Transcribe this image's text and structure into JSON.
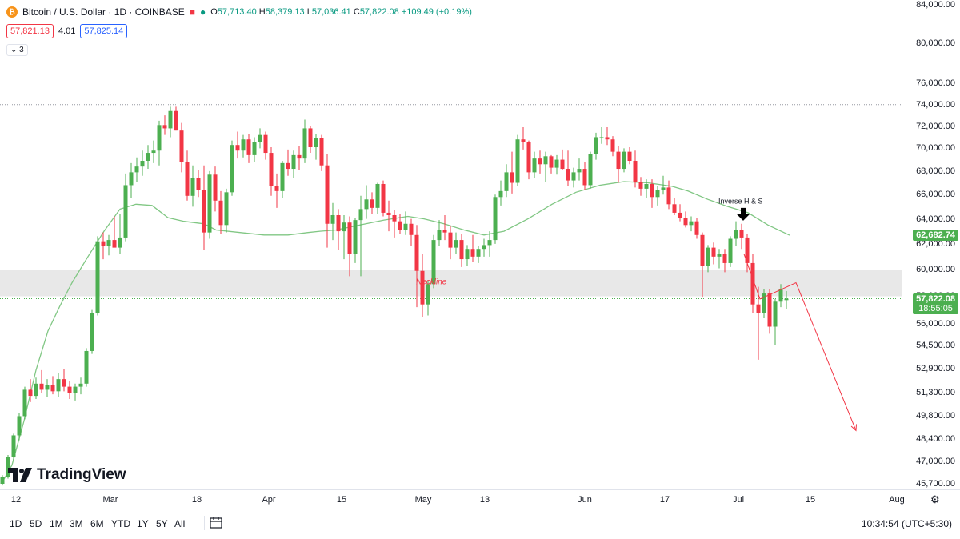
{
  "legend": {
    "symbol_icon": "bitcoin-icon",
    "symbol": "Bitcoin / U.S. Dollar · 1D · COINBASE",
    "ohlc": [
      {
        "k": "O",
        "v": "57,713.40"
      },
      {
        "k": "H",
        "v": "58,379.13"
      },
      {
        "k": "L",
        "v": "57,036.41"
      },
      {
        "k": "C",
        "v": "57,822.08"
      }
    ],
    "change": "+109.49 (+0.19%)",
    "bid": "57,821.13",
    "spread": "4.01",
    "ask": "57,825.14",
    "indicator_count": "3"
  },
  "logo": {
    "text": "TradingView"
  },
  "annotations": {
    "neckline": "Neckline",
    "pattern": "Inverse H & S"
  },
  "price_labels": {
    "ma": "62,682.74",
    "last": "57,822.08",
    "countdown": "18:55:05"
  },
  "price_axis": [
    "84,000.00",
    "80,000.00",
    "76,000.00",
    "74,000.00",
    "72,000.00",
    "70,000.00",
    "68,000.00",
    "66,000.00",
    "64,000.00",
    "62,000.00",
    "60,000.00",
    "58,000.00",
    "56,000.00",
    "54,500.00",
    "52,900.00",
    "51,300.00",
    "49,800.00",
    "48,400.00",
    "47,000.00",
    "45,700.00"
  ],
  "time_axis": [
    "12",
    "Mar",
    "18",
    "Apr",
    "15",
    "May",
    "13",
    "Jun",
    "17",
    "Jul",
    "15",
    "Aug"
  ],
  "ranges": [
    "1D",
    "5D",
    "1M",
    "3M",
    "6M",
    "YTD",
    "1Y",
    "5Y",
    "All"
  ],
  "clock": "10:34:54",
  "timezone": "(UTC+5:30)",
  "colors": {
    "up": "#4caf50",
    "down": "#f23645",
    "ma": "#81c784",
    "zone": "#e0e0e0"
  },
  "chart_data": {
    "type": "candlestick",
    "scale": "log",
    "ylim": [
      45700,
      84000
    ],
    "reference_level": 74000,
    "neckline_zone": [
      58000,
      60000
    ],
    "moving_average": [
      [
        3,
        45800
      ],
      [
        15,
        46800
      ],
      [
        30,
        49500
      ],
      [
        45,
        52800
      ],
      [
        60,
        55500
      ],
      [
        75,
        57300
      ],
      [
        90,
        59000
      ],
      [
        110,
        61000
      ],
      [
        130,
        63000
      ],
      [
        150,
        64800
      ],
      [
        170,
        65200
      ],
      [
        190,
        65100
      ],
      [
        210,
        64100
      ],
      [
        230,
        63800
      ],
      [
        255,
        63600
      ],
      [
        270,
        63100
      ],
      [
        300,
        62900
      ],
      [
        330,
        62700
      ],
      [
        360,
        62700
      ],
      [
        385,
        62900
      ],
      [
        400,
        63000
      ],
      [
        420,
        63100
      ],
      [
        450,
        63500
      ],
      [
        480,
        63900
      ],
      [
        510,
        64200
      ],
      [
        530,
        64000
      ],
      [
        555,
        63600
      ],
      [
        580,
        63100
      ],
      [
        605,
        62700
      ],
      [
        630,
        63000
      ],
      [
        660,
        64000
      ],
      [
        690,
        65200
      ],
      [
        720,
        66200
      ],
      [
        750,
        66800
      ],
      [
        780,
        67100
      ],
      [
        810,
        67000
      ],
      [
        840,
        66700
      ],
      [
        860,
        66300
      ],
      [
        885,
        65600
      ],
      [
        910,
        65000
      ],
      [
        935,
        64500
      ],
      [
        960,
        63500
      ],
      [
        987,
        62683
      ]
    ],
    "projection": [
      [
        930,
        61200
      ],
      [
        950,
        57800
      ],
      [
        995,
        59000
      ],
      [
        1070,
        48900
      ]
    ],
    "candles": [
      [
        3,
        45700,
        46200,
        45600,
        46100
      ],
      [
        10,
        46100,
        47400,
        46000,
        47300
      ],
      [
        17,
        47300,
        48700,
        47100,
        48600
      ],
      [
        24,
        48600,
        50000,
        48300,
        49800
      ],
      [
        31,
        49800,
        51700,
        49600,
        51500
      ],
      [
        38,
        51500,
        52200,
        50700,
        51100
      ],
      [
        45,
        51100,
        52300,
        50900,
        51900
      ],
      [
        52,
        51900,
        52800,
        51300,
        51500
      ],
      [
        59,
        51500,
        52200,
        51000,
        51800
      ],
      [
        66,
        51800,
        52400,
        51200,
        51400
      ],
      [
        73,
        51400,
        52600,
        51000,
        52200
      ],
      [
        80,
        52200,
        52900,
        51400,
        51700
      ],
      [
        87,
        51700,
        52100,
        50900,
        51300
      ],
      [
        94,
        51300,
        51900,
        50800,
        51700
      ],
      [
        101,
        51700,
        52300,
        51200,
        51900
      ],
      [
        108,
        51900,
        54300,
        51700,
        54100
      ],
      [
        115,
        54100,
        57000,
        53900,
        56800
      ],
      [
        122,
        56800,
        62600,
        56600,
        62200
      ],
      [
        129,
        62200,
        62900,
        60800,
        61800
      ],
      [
        136,
        61800,
        62700,
        61100,
        62300
      ],
      [
        143,
        62300,
        64200,
        61800,
        61700
      ],
      [
        150,
        61700,
        64400,
        61200,
        62500
      ],
      [
        157,
        62500,
        67800,
        62200,
        66800
      ],
      [
        164,
        66800,
        68700,
        65700,
        67900
      ],
      [
        171,
        67900,
        69200,
        67100,
        68400
      ],
      [
        178,
        68400,
        69800,
        67600,
        68900
      ],
      [
        185,
        68900,
        70300,
        68200,
        69600
      ],
      [
        192,
        69600,
        70700,
        68700,
        69800
      ],
      [
        199,
        69800,
        72500,
        68500,
        72100
      ],
      [
        206,
        72100,
        73000,
        71200,
        71800
      ],
      [
        213,
        71800,
        73800,
        71000,
        73400
      ],
      [
        220,
        73400,
        73800,
        71600,
        71600
      ],
      [
        227,
        71600,
        72300,
        67900,
        68800
      ],
      [
        234,
        68800,
        69800,
        65500,
        65900
      ],
      [
        241,
        65900,
        68500,
        65000,
        67400
      ],
      [
        248,
        67400,
        68100,
        65800,
        66400
      ],
      [
        255,
        66400,
        68500,
        61500,
        62900
      ],
      [
        262,
        62900,
        68000,
        62400,
        67700
      ],
      [
        269,
        67700,
        68400,
        64600,
        65500
      ],
      [
        276,
        65500,
        66300,
        62800,
        63500
      ],
      [
        283,
        63500,
        66500,
        62900,
        66200
      ],
      [
        290,
        66200,
        70700,
        65900,
        70300
      ],
      [
        297,
        70300,
        71500,
        69100,
        69800
      ],
      [
        304,
        69800,
        71200,
        69200,
        70800
      ],
      [
        311,
        70800,
        71300,
        68700,
        69400
      ],
      [
        318,
        69400,
        71000,
        68800,
        70600
      ],
      [
        325,
        70600,
        71800,
        70000,
        71200
      ],
      [
        332,
        71200,
        71500,
        69000,
        69600
      ],
      [
        339,
        69600,
        70100,
        65900,
        66700
      ],
      [
        346,
        66700,
        67800,
        64900,
        66300
      ],
      [
        353,
        66300,
        68900,
        65700,
        68700
      ],
      [
        360,
        68700,
        69900,
        67600,
        68200
      ],
      [
        367,
        68200,
        69800,
        67400,
        69400
      ],
      [
        374,
        69400,
        70200,
        68100,
        69100
      ],
      [
        381,
        69100,
        72600,
        68700,
        71800
      ],
      [
        388,
        71800,
        72000,
        69600,
        70100
      ],
      [
        395,
        70100,
        71300,
        69000,
        70900
      ],
      [
        402,
        70900,
        71200,
        68000,
        68500
      ],
      [
        409,
        68500,
        69500,
        61700,
        63600
      ],
      [
        416,
        63600,
        65300,
        62300,
        64300
      ],
      [
        423,
        64300,
        64800,
        61500,
        63000
      ],
      [
        430,
        63000,
        64300,
        60800,
        63700
      ],
      [
        437,
        63700,
        64200,
        59500,
        61200
      ],
      [
        444,
        61200,
        64100,
        60500,
        63900
      ],
      [
        451,
        63900,
        65900,
        59500,
        64800
      ],
      [
        458,
        64800,
        66800,
        64000,
        65600
      ],
      [
        465,
        65600,
        66200,
        64400,
        64900
      ],
      [
        472,
        64900,
        67000,
        64400,
        66900
      ],
      [
        479,
        66900,
        67200,
        64200,
        64500
      ],
      [
        486,
        64500,
        65500,
        63000,
        64300
      ],
      [
        493,
        64300,
        64700,
        62500,
        63800
      ],
      [
        500,
        63800,
        64400,
        62800,
        63100
      ],
      [
        507,
        63100,
        64600,
        62700,
        63600
      ],
      [
        514,
        63600,
        64000,
        61800,
        62700
      ],
      [
        521,
        62700,
        63500,
        57200,
        59900
      ],
      [
        528,
        59900,
        61200,
        56500,
        57400
      ],
      [
        535,
        57400,
        59200,
        56600,
        58900
      ],
      [
        542,
        58900,
        62700,
        58600,
        62300
      ],
      [
        549,
        62300,
        63900,
        61800,
        63100
      ],
      [
        556,
        63100,
        64300,
        62300,
        62900
      ],
      [
        563,
        62900,
        63400,
        60800,
        61700
      ],
      [
        570,
        61700,
        62900,
        61200,
        62300
      ],
      [
        577,
        62300,
        62800,
        60200,
        60800
      ],
      [
        584,
        60800,
        61900,
        60300,
        61600
      ],
      [
        591,
        61600,
        62700,
        60600,
        61000
      ],
      [
        598,
        61000,
        61800,
        60500,
        61600
      ],
      [
        605,
        61600,
        62400,
        61000,
        61900
      ],
      [
        612,
        61900,
        63000,
        61000,
        62300
      ],
      [
        619,
        62300,
        66000,
        62000,
        65800
      ],
      [
        626,
        65800,
        67200,
        65100,
        66300
      ],
      [
        633,
        66300,
        68600,
        65800,
        67900
      ],
      [
        640,
        67900,
        69700,
        66100,
        67000
      ],
      [
        647,
        67000,
        71200,
        66700,
        70800
      ],
      [
        654,
        70800,
        71900,
        69900,
        70600
      ],
      [
        661,
        70600,
        70700,
        67300,
        67900
      ],
      [
        668,
        67900,
        69700,
        67400,
        69100
      ],
      [
        675,
        69100,
        69800,
        67800,
        68600
      ],
      [
        682,
        68600,
        69700,
        67100,
        69300
      ],
      [
        689,
        69300,
        69400,
        67800,
        68300
      ],
      [
        696,
        68300,
        69400,
        67700,
        69000
      ],
      [
        703,
        69000,
        69900,
        68100,
        68200
      ],
      [
        710,
        68200,
        69800,
        66700,
        67200
      ],
      [
        717,
        67200,
        68300,
        66600,
        67900
      ],
      [
        724,
        67900,
        69100,
        67200,
        68200
      ],
      [
        731,
        68200,
        68800,
        66400,
        66800
      ],
      [
        738,
        66800,
        69700,
        66500,
        69500
      ],
      [
        745,
        69500,
        71400,
        69000,
        71000
      ],
      [
        752,
        71000,
        71900,
        70400,
        71000
      ],
      [
        759,
        71000,
        71900,
        70300,
        70800
      ],
      [
        766,
        70800,
        71100,
        69300,
        69700
      ],
      [
        773,
        69700,
        70200,
        67000,
        68200
      ],
      [
        780,
        68200,
        70000,
        67900,
        69700
      ],
      [
        787,
        69700,
        70100,
        68600,
        68900
      ],
      [
        794,
        68900,
        69800,
        66600,
        67100
      ],
      [
        801,
        67100,
        67500,
        65900,
        66500
      ],
      [
        808,
        66500,
        67300,
        65700,
        66900
      ],
      [
        815,
        66900,
        67300,
        64900,
        65800
      ],
      [
        822,
        65800,
        66700,
        65100,
        66400
      ],
      [
        829,
        66400,
        67600,
        66000,
        66600
      ],
      [
        836,
        66600,
        67200,
        64800,
        65200
      ],
      [
        843,
        65200,
        65700,
        64300,
        64500
      ],
      [
        850,
        64500,
        65200,
        63800,
        64100
      ],
      [
        857,
        64100,
        64600,
        63300,
        63500
      ],
      [
        864,
        63500,
        64200,
        63000,
        63800
      ],
      [
        871,
        63800,
        64100,
        62400,
        62700
      ],
      [
        878,
        62700,
        62900,
        57900,
        60300
      ],
      [
        885,
        60300,
        61900,
        59800,
        61700
      ],
      [
        892,
        61700,
        62100,
        60400,
        61000
      ],
      [
        899,
        61000,
        61600,
        60100,
        61200
      ],
      [
        906,
        61200,
        61600,
        59800,
        60500
      ],
      [
        913,
        60500,
        62600,
        60200,
        62400
      ],
      [
        920,
        62400,
        63800,
        61800,
        63100
      ],
      [
        927,
        63100,
        63600,
        61600,
        62500
      ],
      [
        934,
        62500,
        62800,
        59800,
        60500
      ],
      [
        941,
        60500,
        61200,
        56800,
        57400
      ],
      [
        948,
        57400,
        58700,
        53500,
        56800
      ],
      [
        955,
        56800,
        58500,
        56400,
        58200
      ],
      [
        962,
        58200,
        58500,
        55300,
        55800
      ],
      [
        969,
        55800,
        57800,
        54500,
        57600
      ],
      [
        976,
        57600,
        58900,
        57200,
        58500
      ],
      [
        983,
        57713,
        58379,
        57036,
        57822
      ]
    ]
  }
}
